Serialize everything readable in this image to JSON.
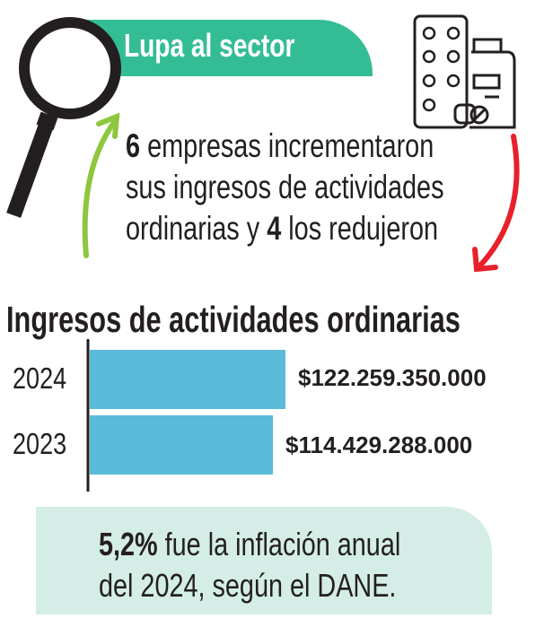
{
  "header": {
    "title": "Lupa al sector"
  },
  "icons": {
    "magnifier": "magnifying-glass-icon",
    "pharma": "pill-blister-bottle-icon",
    "up": "green-curved-arrow-up-icon",
    "down": "red-curved-arrow-down-icon"
  },
  "colors": {
    "accent": "#34bd94",
    "bar": "#5bbbd9",
    "up_arrow": "#8dc63f",
    "down_arrow": "#e8202a",
    "note_bg": "#d4ede6"
  },
  "lead": {
    "num1": "6",
    "line1": " empresas incrementaron",
    "line2": "sus ingresos de actividades",
    "line3a": "ordinarias y ",
    "num2": "4",
    "line3b": " los redujeron"
  },
  "chart_data": {
    "type": "bar",
    "orientation": "horizontal",
    "title": "Ingresos de actividades ordinarias",
    "categories": [
      "2024",
      "2023"
    ],
    "values": [
      122259350000,
      114429288000
    ],
    "value_labels": [
      "$122.259.350.000",
      "$114.429.288.000"
    ],
    "xlim": [
      0,
      122259350000
    ],
    "grid": false
  },
  "note": {
    "bold": "5,2%",
    "line1": " fue la inflación anual",
    "line2": "del 2024, según el DANE."
  }
}
